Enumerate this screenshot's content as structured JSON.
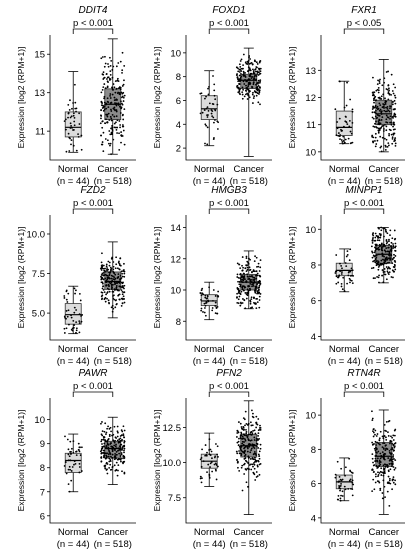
{
  "panels": [
    {
      "title": "DDIT4",
      "pvalue": "p < 0.001",
      "ylabel": "Expression [log2 (RPM+1)]",
      "ylim": [
        9.5,
        16
      ],
      "yticks": [
        "11",
        "13",
        "15"
      ],
      "yticks_v": [
        11,
        13,
        15
      ],
      "groups": [
        {
          "label": "Normal",
          "n": "(n = 44)",
          "median": 11.2,
          "q1": 10.7,
          "q3": 12.0,
          "min": 9.9,
          "max": 14.1
        },
        {
          "label": "Cancer",
          "n": "(n = 518)",
          "median": 12.4,
          "q1": 11.6,
          "q3": 13.2,
          "min": 9.8,
          "max": 15.8
        }
      ]
    },
    {
      "title": "FOXD1",
      "pvalue": "p < 0.001",
      "ylabel": "Expression [log2 (RPM+1)]",
      "ylim": [
        1,
        11.5
      ],
      "yticks": [
        "2",
        "4",
        "6",
        "8",
        "10"
      ],
      "yticks_v": [
        2,
        4,
        6,
        8,
        10
      ],
      "groups": [
        {
          "label": "Normal",
          "n": "(n = 44)",
          "median": 5.3,
          "q1": 4.4,
          "q3": 6.4,
          "min": 2.2,
          "max": 8.5
        },
        {
          "label": "Cancer",
          "n": "(n = 518)",
          "median": 7.7,
          "q1": 7.0,
          "q3": 8.2,
          "min": 1.3,
          "max": 10.4
        }
      ]
    },
    {
      "title": "FXR1",
      "pvalue": "p < 0.05",
      "ylabel": "Expression [log2 (RPM+1)]",
      "ylim": [
        9.7,
        14.3
      ],
      "yticks": [
        "10",
        "11",
        "12",
        "13"
      ],
      "yticks_v": [
        10,
        11,
        12,
        13
      ],
      "groups": [
        {
          "label": "Normal",
          "n": "(n = 44)",
          "median": 10.9,
          "q1": 10.6,
          "q3": 11.5,
          "min": 10.3,
          "max": 12.6
        },
        {
          "label": "Cancer",
          "n": "(n = 518)",
          "median": 11.4,
          "q1": 11.0,
          "q3": 11.9,
          "min": 10.0,
          "max": 13.4
        }
      ]
    },
    {
      "title": "FZD2",
      "pvalue": "p < 0.001",
      "ylabel": "Expression [log2 (RPM+1)]",
      "ylim": [
        3.3,
        11.2
      ],
      "yticks": [
        "5.0",
        "7.5",
        "10.0"
      ],
      "yticks_v": [
        5,
        7.5,
        10
      ],
      "groups": [
        {
          "label": "Normal",
          "n": "(n = 44)",
          "median": 4.9,
          "q1": 4.3,
          "q3": 5.6,
          "min": 3.7,
          "max": 6.7
        },
        {
          "label": "Cancer",
          "n": "(n = 518)",
          "median": 7.0,
          "q1": 6.5,
          "q3": 7.6,
          "min": 4.7,
          "max": 9.5
        }
      ]
    },
    {
      "title": "HMGB3",
      "pvalue": "p < 0.001",
      "ylabel": "Expression [log2 (RPM+1)]",
      "ylim": [
        6.8,
        14.8
      ],
      "yticks": [
        "8",
        "10",
        "12",
        "14"
      ],
      "yticks_v": [
        8,
        10,
        12,
        14
      ],
      "groups": [
        {
          "label": "Normal",
          "n": "(n = 44)",
          "median": 9.3,
          "q1": 9.0,
          "q3": 9.7,
          "min": 8.1,
          "max": 10.5
        },
        {
          "label": "Cancer",
          "n": "(n = 518)",
          "median": 10.5,
          "q1": 10.0,
          "q3": 11.0,
          "min": 8.8,
          "max": 12.5
        }
      ]
    },
    {
      "title": "MINPP1",
      "pvalue": "p < 0.001",
      "ylabel": "Expression [log2 (RPM+1)]",
      "ylim": [
        3.8,
        10.8
      ],
      "yticks": [
        "4",
        "6",
        "8",
        "10"
      ],
      "yticks_v": [
        4,
        6,
        8,
        10
      ],
      "groups": [
        {
          "label": "Normal",
          "n": "(n = 44)",
          "median": 7.7,
          "q1": 7.4,
          "q3": 8.1,
          "min": 6.5,
          "max": 8.9
        },
        {
          "label": "Cancer",
          "n": "(n = 518)",
          "median": 8.6,
          "q1": 8.1,
          "q3": 9.1,
          "min": 7.0,
          "max": 10.1
        }
      ]
    },
    {
      "title": "PAWR",
      "pvalue": "p < 0.001",
      "ylabel": "Expression [log2 (RPM+1)]",
      "ylim": [
        5.7,
        10.9
      ],
      "yticks": [
        "6",
        "7",
        "8",
        "9",
        "10"
      ],
      "yticks_v": [
        6,
        7,
        8,
        9,
        10
      ],
      "groups": [
        {
          "label": "Normal",
          "n": "(n = 44)",
          "median": 8.3,
          "q1": 7.8,
          "q3": 8.6,
          "min": 7.0,
          "max": 9.4
        },
        {
          "label": "Cancer",
          "n": "(n = 518)",
          "median": 8.8,
          "q1": 8.4,
          "q3": 9.1,
          "min": 7.3,
          "max": 10.1
        }
      ]
    },
    {
      "title": "PFN2",
      "pvalue": "p < 0.001",
      "ylabel": "Expression [log2 (RPM+1)]",
      "ylim": [
        5.7,
        14.6
      ],
      "yticks": [
        "7.5",
        "10.0",
        "12.5"
      ],
      "yticks_v": [
        7.5,
        10,
        12.5
      ],
      "groups": [
        {
          "label": "Normal",
          "n": "(n = 44)",
          "median": 10.1,
          "q1": 9.6,
          "q3": 10.6,
          "min": 8.3,
          "max": 12.1
        },
        {
          "label": "Cancer",
          "n": "(n = 518)",
          "median": 11.2,
          "q1": 10.4,
          "q3": 12.0,
          "min": 6.3,
          "max": 14.4
        }
      ]
    },
    {
      "title": "RTN4R",
      "pvalue": "p < 0.001",
      "ylabel": "Expression [log2 (RPM+1)]",
      "ylim": [
        3.7,
        11.0
      ],
      "yticks": [
        "4",
        "6",
        "8",
        "10"
      ],
      "yticks_v": [
        4,
        6,
        8,
        10
      ],
      "groups": [
        {
          "label": "Normal",
          "n": "(n = 44)",
          "median": 6.1,
          "q1": 5.7,
          "q3": 6.5,
          "min": 5.0,
          "max": 7.5
        },
        {
          "label": "Cancer",
          "n": "(n = 518)",
          "median": 7.6,
          "q1": 7.0,
          "q3": 8.4,
          "min": 4.2,
          "max": 10.3
        }
      ]
    }
  ],
  "colors": {
    "normal_box": "#dcdcdc",
    "cancer_box": "#8c8c8c",
    "point": "#000000",
    "line": "#000000"
  },
  "chart_data": [
    {
      "type": "box",
      "title": "DDIT4",
      "ylabel": "Expression [log2 (RPM+1)]",
      "categories": [
        "Normal (n = 44)",
        "Cancer (n = 518)"
      ],
      "annotation": "p < 0.001",
      "median": [
        11.2,
        12.4
      ],
      "q1": [
        10.7,
        11.6
      ],
      "q3": [
        12.0,
        13.2
      ],
      "min": [
        9.9,
        9.8
      ],
      "max": [
        14.1,
        15.8
      ]
    },
    {
      "type": "box",
      "title": "FOXD1",
      "ylabel": "Expression [log2 (RPM+1)]",
      "categories": [
        "Normal (n = 44)",
        "Cancer (n = 518)"
      ],
      "annotation": "p < 0.001",
      "median": [
        5.3,
        7.7
      ],
      "q1": [
        4.4,
        7.0
      ],
      "q3": [
        6.4,
        8.2
      ],
      "min": [
        2.2,
        1.3
      ],
      "max": [
        8.5,
        10.4
      ]
    },
    {
      "type": "box",
      "title": "FXR1",
      "ylabel": "Expression [log2 (RPM+1)]",
      "categories": [
        "Normal (n = 44)",
        "Cancer (n = 518)"
      ],
      "annotation": "p < 0.05",
      "median": [
        10.9,
        11.4
      ],
      "q1": [
        10.6,
        11.0
      ],
      "q3": [
        11.5,
        11.9
      ],
      "min": [
        10.3,
        10.0
      ],
      "max": [
        12.6,
        13.4
      ]
    },
    {
      "type": "box",
      "title": "FZD2",
      "ylabel": "Expression [log2 (RPM+1)]",
      "categories": [
        "Normal (n = 44)",
        "Cancer (n = 518)"
      ],
      "annotation": "p < 0.001",
      "median": [
        4.9,
        7.0
      ],
      "q1": [
        4.3,
        6.5
      ],
      "q3": [
        5.6,
        7.6
      ],
      "min": [
        3.7,
        4.7
      ],
      "max": [
        6.7,
        9.5
      ]
    },
    {
      "type": "box",
      "title": "HMGB3",
      "ylabel": "Expression [log2 (RPM+1)]",
      "categories": [
        "Normal (n = 44)",
        "Cancer (n = 518)"
      ],
      "annotation": "p < 0.001",
      "median": [
        9.3,
        10.5
      ],
      "q1": [
        9.0,
        10.0
      ],
      "q3": [
        9.7,
        11.0
      ],
      "min": [
        8.1,
        8.8
      ],
      "max": [
        10.5,
        12.5
      ]
    },
    {
      "type": "box",
      "title": "MINPP1",
      "ylabel": "Expression [log2 (RPM+1)]",
      "categories": [
        "Normal (n = 44)",
        "Cancer (n = 518)"
      ],
      "annotation": "p < 0.001",
      "median": [
        7.7,
        8.6
      ],
      "q1": [
        7.4,
        8.1
      ],
      "q3": [
        8.1,
        9.1
      ],
      "min": [
        6.5,
        7.0
      ],
      "max": [
        8.9,
        10.1
      ]
    },
    {
      "type": "box",
      "title": "PAWR",
      "ylabel": "Expression [log2 (RPM+1)]",
      "categories": [
        "Normal (n = 44)",
        "Cancer (n = 518)"
      ],
      "annotation": "p < 0.001",
      "median": [
        8.3,
        8.8
      ],
      "q1": [
        7.8,
        8.4
      ],
      "q3": [
        8.6,
        9.1
      ],
      "min": [
        7.0,
        7.3
      ],
      "max": [
        9.4,
        10.1
      ]
    },
    {
      "type": "box",
      "title": "PFN2",
      "ylabel": "Expression [log2 (RPM+1)]",
      "categories": [
        "Normal (n = 44)",
        "Cancer (n = 518)"
      ],
      "annotation": "p < 0.001",
      "median": [
        10.1,
        11.2
      ],
      "q1": [
        9.6,
        10.4
      ],
      "q3": [
        10.6,
        12.0
      ],
      "min": [
        8.3,
        6.3
      ],
      "max": [
        12.1,
        14.4
      ]
    },
    {
      "type": "box",
      "title": "RTN4R",
      "ylabel": "Expression [log2 (RPM+1)]",
      "categories": [
        "Normal (n = 44)",
        "Cancer (n = 518)"
      ],
      "annotation": "p < 0.001",
      "median": [
        6.1,
        7.6
      ],
      "q1": [
        5.7,
        7.0
      ],
      "q3": [
        6.5,
        8.4
      ],
      "min": [
        5.0,
        4.2
      ],
      "max": [
        7.5,
        10.3
      ]
    }
  ]
}
